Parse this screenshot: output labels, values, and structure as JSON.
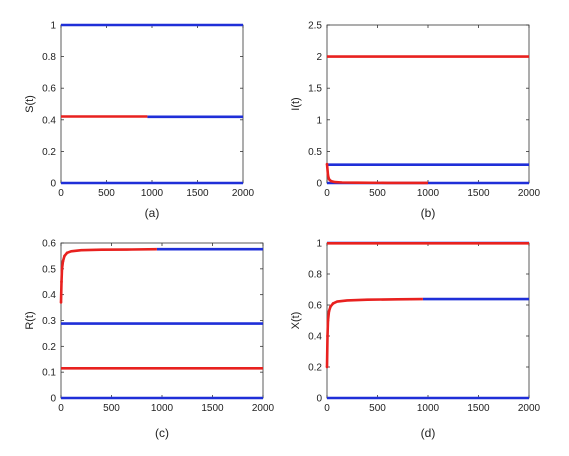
{
  "colors": {
    "red": "#e8211f",
    "blue": "#1f2fd8",
    "axis": "#333333",
    "bg": "#ffffff"
  },
  "chart_data": [
    {
      "type": "line",
      "caption": "(a)",
      "ylabel": "S(t)",
      "xlim": [
        0,
        2000
      ],
      "ylim": [
        0,
        1
      ],
      "xticks": [
        0,
        500,
        1000,
        1500,
        2000
      ],
      "yticks": [
        0,
        0.2,
        0.4,
        0.6,
        0.8,
        1
      ],
      "ytick_labels": [
        "0",
        "0.2",
        "0.4",
        "0.6",
        "0.8",
        "1"
      ],
      "series": [
        {
          "color": "blue",
          "segments": [
            {
              "x": [
                0,
                2000
              ],
              "y": [
                1,
                1
              ]
            }
          ]
        },
        {
          "color": "blue",
          "segments": [
            {
              "x": [
                0,
                2000
              ],
              "y": [
                0,
                0
              ]
            }
          ]
        },
        {
          "color": "blue",
          "segments": [
            {
              "x": [
                950,
                2000
              ],
              "y": [
                0.419,
                0.419
              ]
            }
          ]
        },
        {
          "color": "red",
          "segments": [
            {
              "x": [
                0,
                950
              ],
              "y": [
                0.421,
                0.421
              ]
            }
          ]
        }
      ]
    },
    {
      "type": "line",
      "caption": "(b)",
      "ylabel": "I(t)",
      "xlim": [
        0,
        2000
      ],
      "ylim": [
        0,
        2.5
      ],
      "xticks": [
        0,
        500,
        1000,
        1500,
        2000
      ],
      "yticks": [
        0,
        0.5,
        1,
        1.5,
        2,
        2.5
      ],
      "ytick_labels": [
        "0",
        "0.5",
        "1",
        "1.5",
        "2",
        "2.5"
      ],
      "series": [
        {
          "color": "red",
          "segments": [
            {
              "x": [
                0,
                2000
              ],
              "y": [
                2,
                2
              ]
            }
          ]
        },
        {
          "color": "blue",
          "segments": [
            {
              "x": [
                0,
                2000
              ],
              "y": [
                0.29,
                0.29
              ]
            }
          ]
        },
        {
          "color": "blue",
          "segments": [
            {
              "x": [
                0,
                2000
              ],
              "y": [
                0,
                0
              ]
            }
          ]
        },
        {
          "color": "red",
          "segments": [
            {
              "x": [
                0,
                10,
                20,
                40,
                80,
                150,
                300,
                600,
                1000
              ],
              "y": [
                0.3,
                0.12,
                0.06,
                0.03,
                0.015,
                0.008,
                0.004,
                0.002,
                0.001
              ]
            }
          ]
        }
      ]
    },
    {
      "type": "line",
      "caption": "(c)",
      "ylabel": "R(t)",
      "xlim": [
        0,
        2000
      ],
      "ylim": [
        0,
        0.6
      ],
      "xticks": [
        0,
        500,
        1000,
        1500,
        2000
      ],
      "yticks": [
        0,
        0.1,
        0.2,
        0.3,
        0.4,
        0.5,
        0.6
      ],
      "ytick_labels": [
        "0",
        "0.1",
        "0.2",
        "0.3",
        "0.4",
        "0.5",
        "0.6"
      ],
      "series": [
        {
          "color": "blue",
          "segments": [
            {
              "x": [
                950,
                2000
              ],
              "y": [
                0.576,
                0.576
              ]
            }
          ]
        },
        {
          "color": "red",
          "segments": [
            {
              "x": [
                0,
                5,
                10,
                20,
                35,
                60,
                100,
                200,
                400,
                700,
                950
              ],
              "y": [
                0.37,
                0.45,
                0.5,
                0.53,
                0.55,
                0.562,
                0.568,
                0.572,
                0.574,
                0.575,
                0.576
              ]
            }
          ]
        },
        {
          "color": "blue",
          "segments": [
            {
              "x": [
                0,
                2000
              ],
              "y": [
                0.288,
                0.288
              ]
            }
          ]
        },
        {
          "color": "red",
          "segments": [
            {
              "x": [
                0,
                2000
              ],
              "y": [
                0.115,
                0.115
              ]
            }
          ]
        },
        {
          "color": "blue",
          "segments": [
            {
              "x": [
                0,
                2000
              ],
              "y": [
                0,
                0
              ]
            }
          ]
        }
      ]
    },
    {
      "type": "line",
      "caption": "(d)",
      "ylabel": "X(t)",
      "xlim": [
        0,
        2000
      ],
      "ylim": [
        0,
        1
      ],
      "xticks": [
        0,
        500,
        1000,
        1500,
        2000
      ],
      "yticks": [
        0,
        0.2,
        0.4,
        0.6,
        0.8,
        1
      ],
      "ytick_labels": [
        "0",
        "0.2",
        "0.4",
        "0.6",
        "0.8",
        "1"
      ],
      "series": [
        {
          "color": "blue",
          "segments": [
            {
              "x": [
                0,
                2000
              ],
              "y": [
                1,
                1
              ]
            }
          ]
        },
        {
          "color": "red",
          "segments": [
            {
              "x": [
                0,
                2000
              ],
              "y": [
                0.998,
                0.998
              ]
            }
          ]
        },
        {
          "color": "blue",
          "segments": [
            {
              "x": [
                950,
                2000
              ],
              "y": [
                0.638,
                0.638
              ]
            }
          ]
        },
        {
          "color": "red",
          "segments": [
            {
              "x": [
                0,
                5,
                10,
                20,
                35,
                60,
                100,
                200,
                400,
                700,
                950
              ],
              "y": [
                0.2,
                0.4,
                0.5,
                0.56,
                0.59,
                0.61,
                0.622,
                0.63,
                0.634,
                0.637,
                0.638
              ]
            }
          ]
        },
        {
          "color": "blue",
          "segments": [
            {
              "x": [
                0,
                2000
              ],
              "y": [
                0,
                0
              ]
            }
          ]
        }
      ]
    }
  ]
}
